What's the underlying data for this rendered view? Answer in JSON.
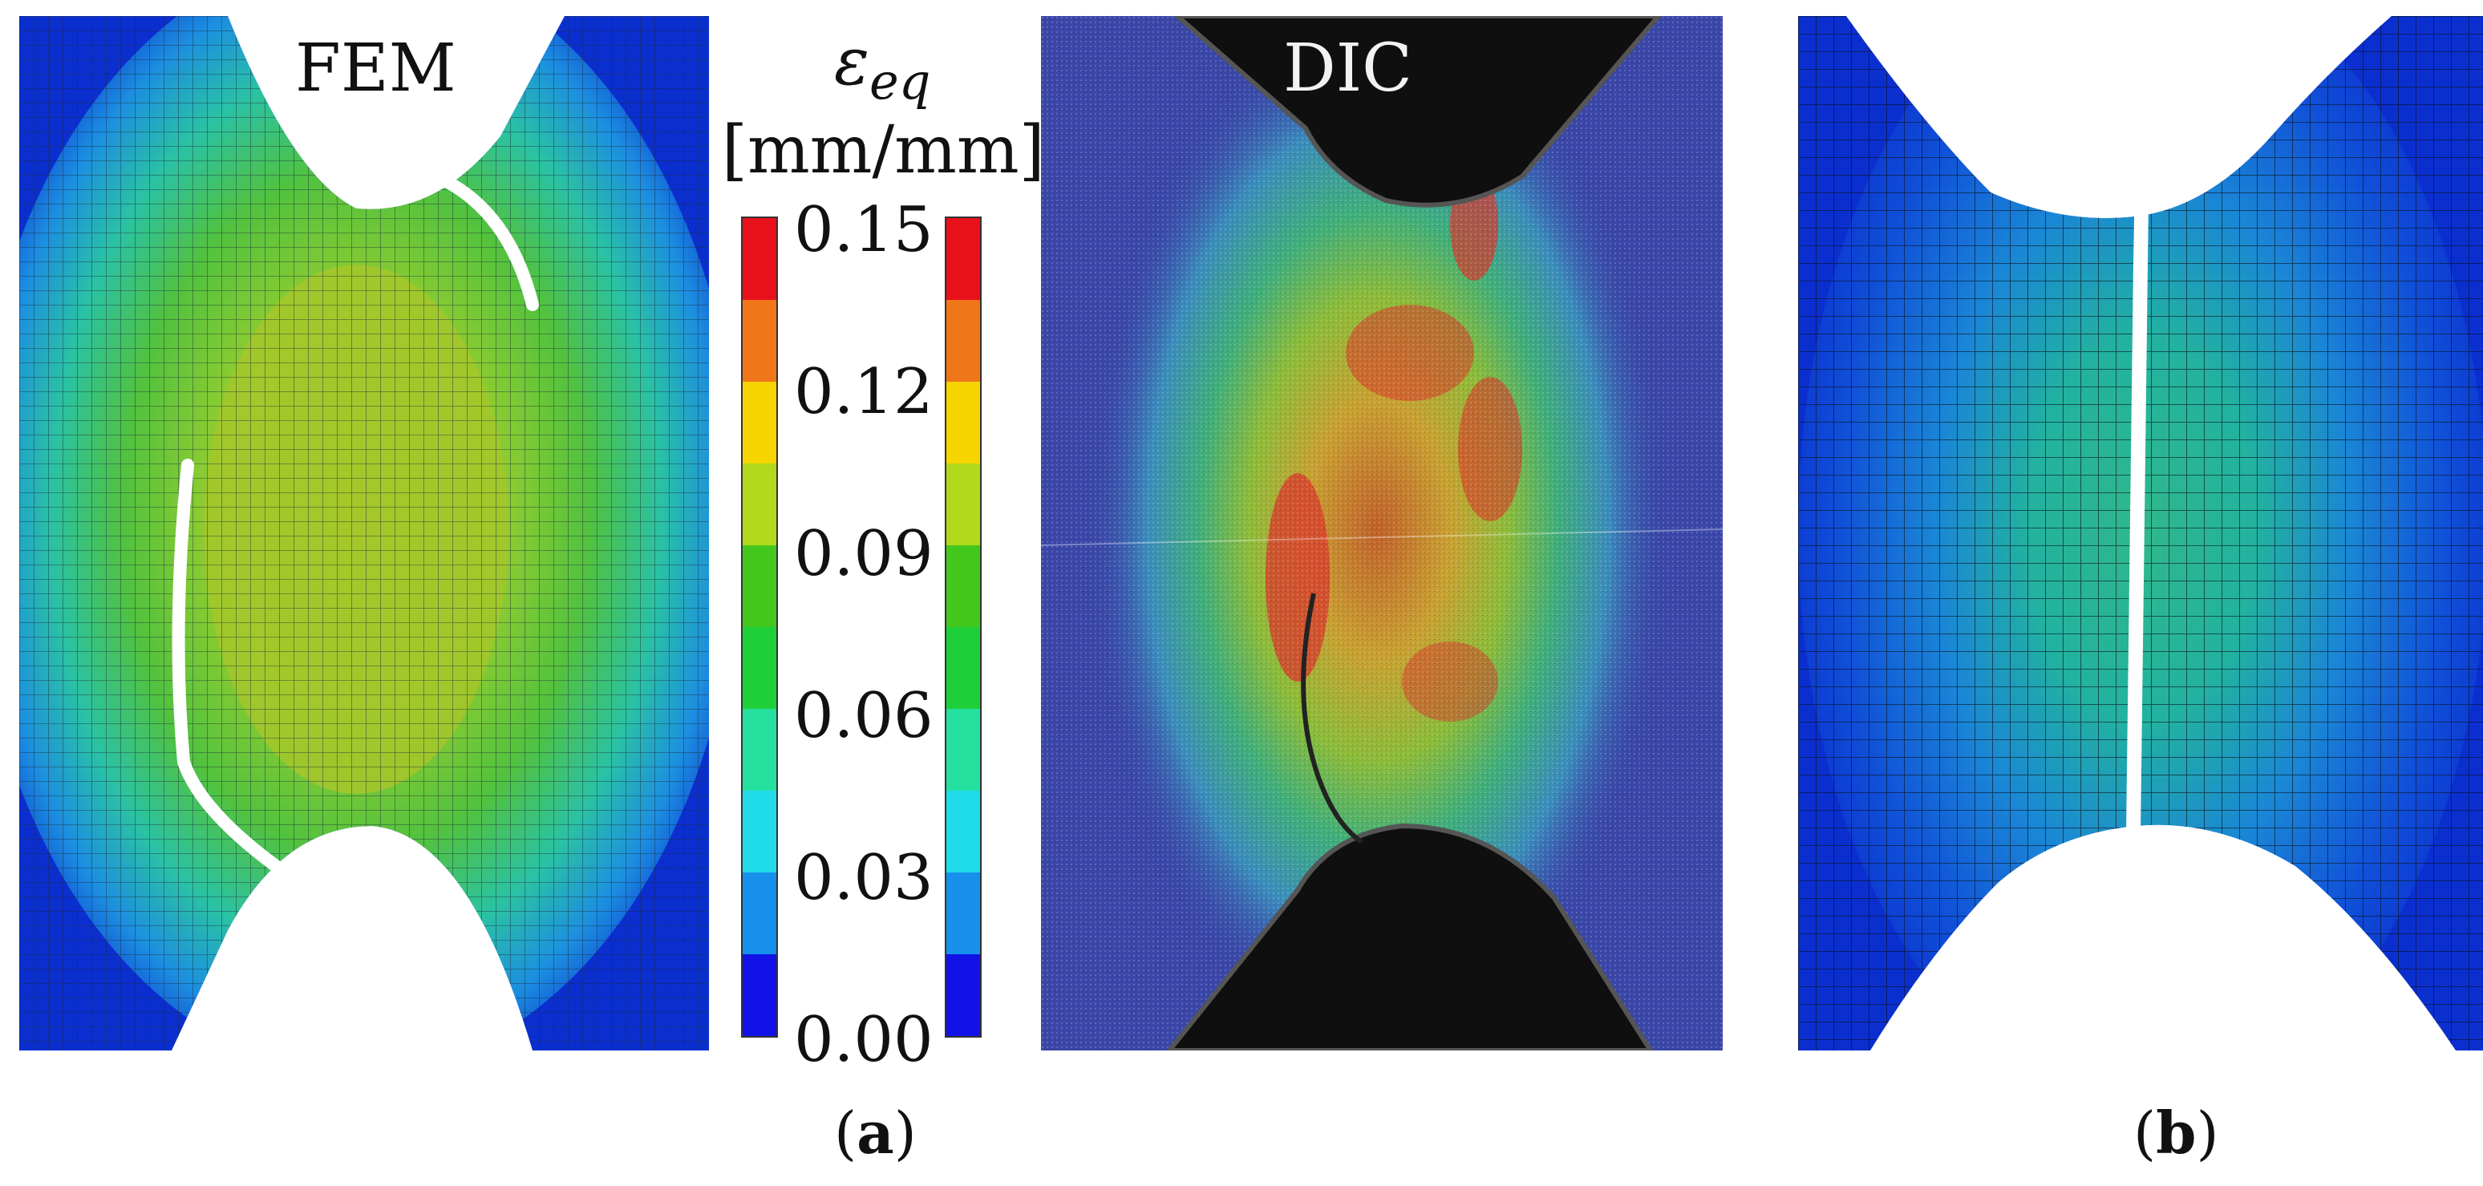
{
  "panel_a": {
    "fem_title": "FEM",
    "dic_title": "DIC",
    "caption_open": "(",
    "caption_letter": "a",
    "caption_close": ")"
  },
  "panel_b": {
    "caption_open": "(",
    "caption_letter": "b",
    "caption_close": ")"
  },
  "colorbar": {
    "symbol": "ε",
    "symbol_subscript": "eq",
    "unit": "[mm/mm]",
    "ticks": [
      "0.15",
      "0.12",
      "0.09",
      "0.06",
      "0.03",
      "0.00"
    ],
    "colors": [
      "#e8101a",
      "#f0761a",
      "#f5d400",
      "#b2d91c",
      "#45c81e",
      "#1fcf3a",
      "#26e0a0",
      "#20dcea",
      "#1690ea",
      "#1212e6"
    ]
  },
  "colors": {
    "deep_blue": "#0b2fcf",
    "mid_blue": "#1a66e0",
    "cyan": "#27c2b8",
    "green": "#5ec83e",
    "yellow_green": "#a9cc2a",
    "red": "#d8372c",
    "dic_background": "#3a47a8",
    "grip_black": "#0f0f0f"
  }
}
